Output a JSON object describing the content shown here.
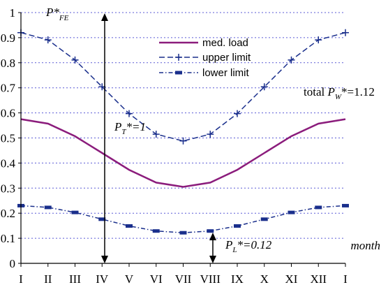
{
  "chart_data": {
    "type": "line",
    "categories": [
      "I",
      "II",
      "III",
      "IV",
      "V",
      "VI",
      "VII",
      "VIII",
      "IX",
      "X",
      "XI",
      "XII",
      "I"
    ],
    "xlabel": "month",
    "ylabel": {
      "main": "P*",
      "sub": "FE"
    },
    "ylim": [
      0,
      1
    ],
    "yticks": [
      "0",
      "0.1",
      "0.2",
      "0.3",
      "0.4",
      "0.5",
      "0.6",
      "0.7",
      "0.8",
      "0.9",
      "1"
    ],
    "grid": true,
    "legend_position": "top-right",
    "series": [
      {
        "name": "med. load",
        "color": "#8b1c7c",
        "style": "solid",
        "values": [
          0.575,
          0.557,
          0.507,
          0.44,
          0.373,
          0.322,
          0.305,
          0.322,
          0.373,
          0.44,
          0.507,
          0.557,
          0.575
        ]
      },
      {
        "name": "upper limit",
        "color": "#1a2f8c",
        "style": "dashed-plus",
        "values": [
          0.92,
          0.891,
          0.811,
          0.704,
          0.597,
          0.515,
          0.488,
          0.515,
          0.597,
          0.704,
          0.811,
          0.891,
          0.92
        ]
      },
      {
        "name": "lower limit",
        "color": "#1a2f8c",
        "style": "dashdot-dash",
        "values": [
          0.23,
          0.223,
          0.203,
          0.176,
          0.149,
          0.129,
          0.122,
          0.129,
          0.149,
          0.176,
          0.203,
          0.223,
          0.23
        ]
      }
    ],
    "annotations": {
      "pt": {
        "main": "P",
        "sub": "T",
        "suffix": "*=1"
      },
      "pl": {
        "main": "P",
        "sub": "L",
        "suffix": "*=0.12"
      },
      "pw": {
        "prefix": "total ",
        "main": "P",
        "sub": "W",
        "suffix": "*=1.12"
      }
    }
  }
}
